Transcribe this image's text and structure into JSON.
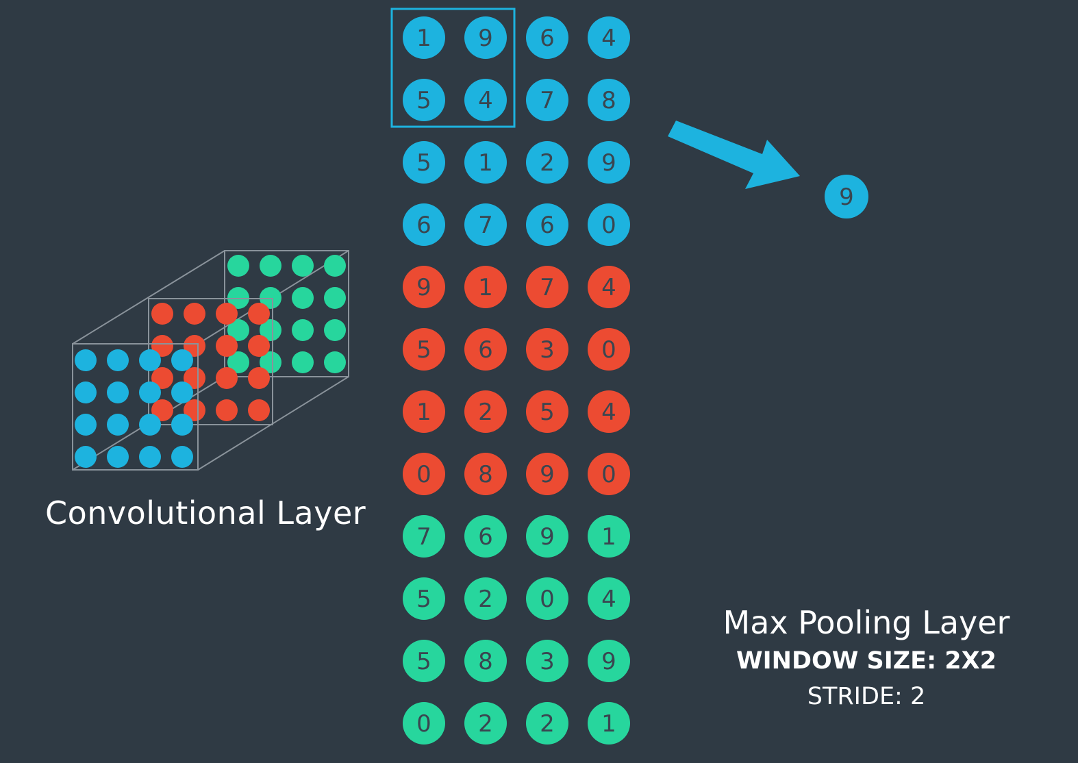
{
  "colors": {
    "background": "#2f3a44",
    "blue": "#1db3df",
    "red": "#ec4b32",
    "green": "#27d69d",
    "number_text": "#3a4650",
    "frame": "#8a939b"
  },
  "convolutional_label": "Convolutional Layer",
  "pooling": {
    "title": "Max Pooling Layer",
    "window_size": "WINDOW SIZE: 2X2",
    "stride": "STRIDE: 2",
    "output_value": "9"
  },
  "feature_maps": [
    {
      "color": "blue",
      "rows": [
        [
          "1",
          "9",
          "6",
          "4"
        ],
        [
          "5",
          "4",
          "7",
          "8"
        ],
        [
          "5",
          "1",
          "2",
          "9"
        ],
        [
          "6",
          "7",
          "6",
          "0"
        ]
      ]
    },
    {
      "color": "red",
      "rows": [
        [
          "9",
          "1",
          "7",
          "4"
        ],
        [
          "5",
          "6",
          "3",
          "0"
        ],
        [
          "1",
          "2",
          "5",
          "4"
        ],
        [
          "0",
          "8",
          "9",
          "0"
        ]
      ]
    },
    {
      "color": "green",
      "rows": [
        [
          "7",
          "6",
          "9",
          "1"
        ],
        [
          "5",
          "2",
          "0",
          "4"
        ],
        [
          "5",
          "8",
          "3",
          "9"
        ],
        [
          "0",
          "2",
          "2",
          "1"
        ]
      ]
    }
  ],
  "highlight_window": {
    "map": 0,
    "row": 0,
    "col": 0,
    "size": 2
  }
}
